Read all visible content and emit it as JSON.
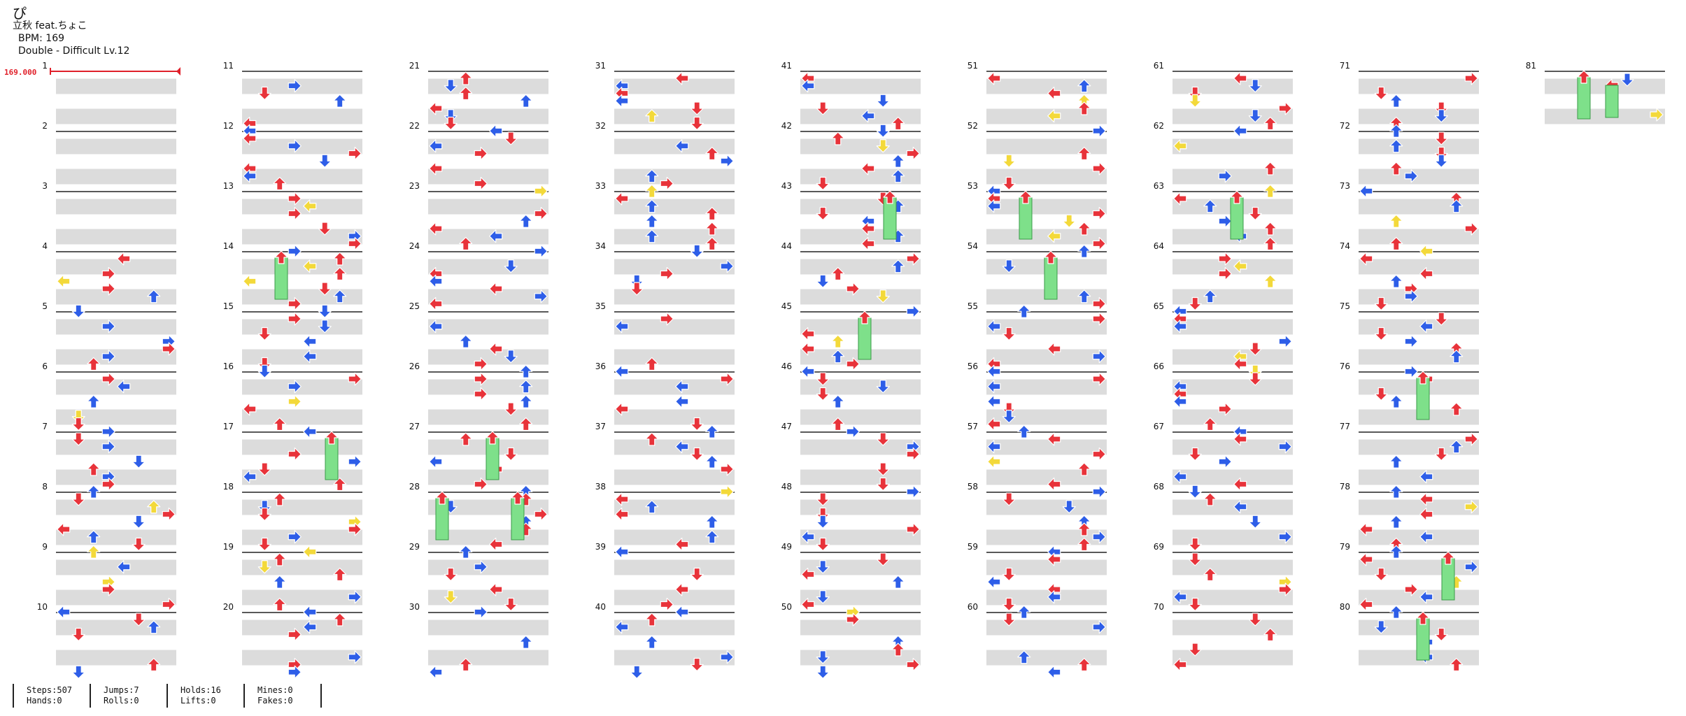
{
  "song": {
    "title": "ぴ",
    "artist": "立秋 feat.ちょこ",
    "bpm_text": "BPM: 169",
    "chart_text": "Double - Difficult  Lv.12",
    "bpm_marker": "169.000"
  },
  "measure_numbers": [
    "1",
    "2",
    "3",
    "4",
    "5",
    "6",
    "7",
    "8",
    "9",
    "10",
    "11",
    "12",
    "13",
    "14",
    "15",
    "16",
    "17",
    "18",
    "19",
    "20",
    "21",
    "22",
    "23",
    "24",
    "25",
    "26",
    "27",
    "28",
    "29",
    "30",
    "31",
    "32",
    "33",
    "34",
    "35",
    "36",
    "37",
    "38",
    "39",
    "40",
    "41",
    "42",
    "43",
    "44",
    "45",
    "46",
    "47",
    "48",
    "49",
    "50",
    "51",
    "52",
    "53",
    "54",
    "55",
    "56",
    "57",
    "58",
    "59",
    "60",
    "61",
    "62",
    "63",
    "64",
    "65",
    "66",
    "67",
    "68",
    "69",
    "70",
    "71",
    "72",
    "73",
    "74",
    "75",
    "76",
    "77",
    "78",
    "79",
    "80",
    "81"
  ],
  "stats": {
    "steps": "Steps:507",
    "hands": "Hands:0",
    "jumps": "Jumps:7",
    "rolls": "Rolls:0",
    "holds": "Holds:16",
    "lifts": "Lifts:0",
    "mines": "Mines:0",
    "fakes": "Fakes:0"
  },
  "colors": {
    "quarter": "#e8333a",
    "eighth": "#2e5ee8",
    "sixteenth": "#f3d93a",
    "hold": "#7ee08a",
    "band": "#dcdcdc",
    "bpm": "#e0202a"
  }
}
